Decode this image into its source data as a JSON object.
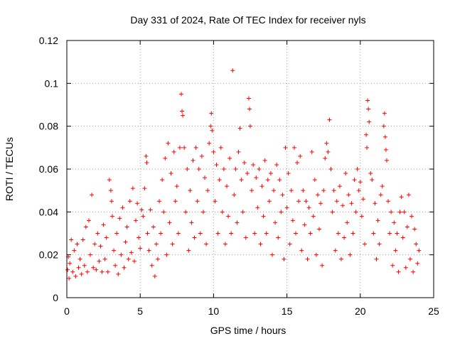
{
  "chart_data": {
    "type": "scatter",
    "title": "Day 331 of 2024, Rate Of TEC Index for receiver nyls",
    "xlabel": "GPS time / hours",
    "ylabel": "ROTI / TECUs",
    "xlim": [
      0,
      25
    ],
    "ylim": [
      0,
      0.12
    ],
    "x_ticks": [
      0,
      5,
      10,
      15,
      20,
      25
    ],
    "x_tick_labels": [
      "0",
      "5",
      "10",
      "15",
      "20",
      "25"
    ],
    "y_ticks": [
      0,
      0.02,
      0.04,
      0.06,
      0.08,
      0.1,
      0.12
    ],
    "y_tick_labels": [
      "0",
      "0.02",
      "0.04",
      "0.06",
      "0.08",
      "0.1",
      "0.12"
    ],
    "grid": true,
    "marker": "+",
    "colors": {
      "points": "#ff0000",
      "grid": "#a0a0a0",
      "axes": "#000000"
    },
    "series": [
      {
        "points": [
          [
            0.05,
            0.013
          ],
          [
            0.1,
            0.019
          ],
          [
            0.15,
            0.009
          ],
          [
            0.2,
            0.016
          ],
          [
            0.3,
            0.027
          ],
          [
            0.4,
            0.012
          ],
          [
            0.5,
            0.022
          ],
          [
            0.6,
            0.01
          ],
          [
            0.7,
            0.025
          ],
          [
            0.8,
            0.014
          ],
          [
            0.9,
            0.018
          ],
          [
            1.0,
            0.011
          ],
          [
            1.1,
            0.027
          ],
          [
            1.2,
            0.015
          ],
          [
            1.3,
            0.033
          ],
          [
            1.4,
            0.012
          ],
          [
            1.5,
            0.036
          ],
          [
            1.6,
            0.02
          ],
          [
            1.7,
            0.048
          ],
          [
            1.8,
            0.014
          ],
          [
            1.9,
            0.025
          ],
          [
            2.0,
            0.013
          ],
          [
            2.1,
            0.03
          ],
          [
            2.2,
            0.017
          ],
          [
            2.3,
            0.024
          ],
          [
            2.4,
            0.012
          ],
          [
            2.5,
            0.034
          ],
          [
            2.6,
            0.018
          ],
          [
            2.7,
            0.028
          ],
          [
            2.8,
            0.012
          ],
          [
            2.9,
            0.055
          ],
          [
            3.0,
            0.05
          ],
          [
            3.05,
            0.045
          ],
          [
            3.1,
            0.038
          ],
          [
            3.2,
            0.022
          ],
          [
            3.3,
            0.015
          ],
          [
            3.4,
            0.03
          ],
          [
            3.5,
            0.011
          ],
          [
            3.6,
            0.037
          ],
          [
            3.7,
            0.02
          ],
          [
            3.8,
            0.042
          ],
          [
            3.9,
            0.014
          ],
          [
            4.0,
            0.026
          ],
          [
            4.1,
            0.033
          ],
          [
            4.2,
            0.018
          ],
          [
            4.3,
            0.045
          ],
          [
            4.4,
            0.021
          ],
          [
            4.5,
            0.051
          ],
          [
            4.6,
            0.017
          ],
          [
            4.7,
            0.036
          ],
          [
            4.8,
            0.044
          ],
          [
            4.9,
            0.028
          ],
          [
            5.0,
            0.023
          ],
          [
            5.1,
            0.041
          ],
          [
            5.2,
            0.038
          ],
          [
            5.3,
            0.051
          ],
          [
            5.4,
            0.066
          ],
          [
            5.45,
            0.063
          ],
          [
            5.5,
            0.03
          ],
          [
            5.6,
            0.022
          ],
          [
            5.7,
            0.041
          ],
          [
            5.8,
            0.015
          ],
          [
            5.9,
            0.033
          ],
          [
            6.0,
            0.01
          ],
          [
            6.1,
            0.025
          ],
          [
            6.2,
            0.018
          ],
          [
            6.3,
            0.045
          ],
          [
            6.4,
            0.03
          ],
          [
            6.5,
            0.055
          ],
          [
            6.6,
            0.04
          ],
          [
            6.7,
            0.065
          ],
          [
            6.8,
            0.02
          ],
          [
            6.9,
            0.072
          ],
          [
            7.0,
            0.035
          ],
          [
            7.1,
            0.058
          ],
          [
            7.2,
            0.025
          ],
          [
            7.3,
            0.068
          ],
          [
            7.4,
            0.045
          ],
          [
            7.5,
            0.052
          ],
          [
            7.6,
            0.03
          ],
          [
            7.7,
            0.07
          ],
          [
            7.8,
            0.095
          ],
          [
            7.85,
            0.087
          ],
          [
            7.9,
            0.085
          ],
          [
            8.0,
            0.07
          ],
          [
            8.1,
            0.04
          ],
          [
            8.2,
            0.06
          ],
          [
            8.3,
            0.022
          ],
          [
            8.4,
            0.05
          ],
          [
            8.5,
            0.035
          ],
          [
            8.6,
            0.064
          ],
          [
            8.7,
            0.028
          ],
          [
            8.8,
            0.07
          ],
          [
            8.9,
            0.045
          ],
          [
            9.0,
            0.06
          ],
          [
            9.1,
            0.03
          ],
          [
            9.2,
            0.066
          ],
          [
            9.3,
            0.04
          ],
          [
            9.4,
            0.056
          ],
          [
            9.5,
            0.025
          ],
          [
            9.6,
            0.05
          ],
          [
            9.7,
            0.072
          ],
          [
            9.8,
            0.08
          ],
          [
            9.85,
            0.086
          ],
          [
            9.9,
            0.078
          ],
          [
            10.0,
            0.068
          ],
          [
            10.1,
            0.045
          ],
          [
            10.2,
            0.062
          ],
          [
            10.3,
            0.03
          ],
          [
            10.4,
            0.055
          ],
          [
            10.5,
            0.07
          ],
          [
            10.6,
            0.04
          ],
          [
            10.7,
            0.06
          ],
          [
            10.8,
            0.025
          ],
          [
            10.9,
            0.052
          ],
          [
            11.0,
            0.038
          ],
          [
            11.1,
            0.065
          ],
          [
            11.2,
            0.03
          ],
          [
            11.3,
            0.106
          ],
          [
            11.4,
            0.048
          ],
          [
            11.5,
            0.06
          ],
          [
            11.6,
            0.035
          ],
          [
            11.7,
            0.068
          ],
          [
            11.8,
            0.079
          ],
          [
            11.9,
            0.055
          ],
          [
            12.0,
            0.04
          ],
          [
            12.1,
            0.063
          ],
          [
            12.2,
            0.028
          ],
          [
            12.3,
            0.058
          ],
          [
            12.4,
            0.093
          ],
          [
            12.45,
            0.088
          ],
          [
            12.5,
            0.08
          ],
          [
            12.6,
            0.05
          ],
          [
            12.7,
            0.062
          ],
          [
            12.8,
            0.03
          ],
          [
            12.9,
            0.056
          ],
          [
            13.0,
            0.042
          ],
          [
            13.1,
            0.06
          ],
          [
            13.2,
            0.025
          ],
          [
            13.3,
            0.052
          ],
          [
            13.4,
            0.038
          ],
          [
            13.5,
            0.064
          ],
          [
            13.6,
            0.03
          ],
          [
            13.7,
            0.055
          ],
          [
            13.8,
            0.045
          ],
          [
            13.9,
            0.058
          ],
          [
            14.0,
            0.02
          ],
          [
            14.1,
            0.05
          ],
          [
            14.2,
            0.035
          ],
          [
            14.3,
            0.062
          ],
          [
            14.4,
            0.028
          ],
          [
            14.5,
            0.055
          ],
          [
            14.6,
            0.04
          ],
          [
            14.7,
            0.048
          ],
          [
            14.8,
            0.018
          ],
          [
            14.9,
            0.07
          ],
          [
            15.0,
            0.042
          ],
          [
            15.1,
            0.058
          ],
          [
            15.2,
            0.025
          ],
          [
            15.3,
            0.05
          ],
          [
            15.4,
            0.036
          ],
          [
            15.5,
            0.07
          ],
          [
            15.6,
            0.03
          ],
          [
            15.7,
            0.063
          ],
          [
            15.8,
            0.045
          ],
          [
            15.9,
            0.066
          ],
          [
            16.0,
            0.022
          ],
          [
            16.1,
            0.05
          ],
          [
            16.2,
            0.034
          ],
          [
            16.3,
            0.045
          ],
          [
            16.4,
            0.018
          ],
          [
            16.5,
            0.042
          ],
          [
            16.6,
            0.03
          ],
          [
            16.7,
            0.068
          ],
          [
            16.8,
            0.038
          ],
          [
            16.9,
            0.055
          ],
          [
            17.0,
            0.02
          ],
          [
            17.1,
            0.048
          ],
          [
            17.2,
            0.032
          ],
          [
            17.3,
            0.044
          ],
          [
            17.4,
            0.015
          ],
          [
            17.5,
            0.05
          ],
          [
            17.6,
            0.065
          ],
          [
            17.7,
            0.072
          ],
          [
            17.8,
            0.068
          ],
          [
            17.9,
            0.083
          ],
          [
            18.0,
            0.06
          ],
          [
            18.1,
            0.04
          ],
          [
            18.2,
            0.05
          ],
          [
            18.3,
            0.022
          ],
          [
            18.4,
            0.045
          ],
          [
            18.5,
            0.03
          ],
          [
            18.6,
            0.052
          ],
          [
            18.7,
            0.018
          ],
          [
            18.8,
            0.043
          ],
          [
            18.9,
            0.028
          ],
          [
            19.0,
            0.058
          ],
          [
            19.1,
            0.035
          ],
          [
            19.2,
            0.048
          ],
          [
            19.3,
            0.02
          ],
          [
            19.4,
            0.044
          ],
          [
            19.5,
            0.03
          ],
          [
            19.6,
            0.055
          ],
          [
            19.7,
            0.04
          ],
          [
            19.8,
            0.06
          ],
          [
            19.9,
            0.05
          ],
          [
            20.0,
            0.054
          ],
          [
            20.1,
            0.038
          ],
          [
            20.2,
            0.046
          ],
          [
            20.3,
            0.025
          ],
          [
            20.4,
            0.076
          ],
          [
            20.45,
            0.07
          ],
          [
            20.5,
            0.092
          ],
          [
            20.55,
            0.088
          ],
          [
            20.6,
            0.082
          ],
          [
            20.7,
            0.058
          ],
          [
            20.8,
            0.055
          ],
          [
            20.9,
            0.03
          ],
          [
            21.0,
            0.044
          ],
          [
            21.1,
            0.018
          ],
          [
            21.2,
            0.036
          ],
          [
            21.3,
            0.025
          ],
          [
            21.4,
            0.048
          ],
          [
            21.5,
            0.052
          ],
          [
            21.6,
            0.08
          ],
          [
            21.65,
            0.086
          ],
          [
            21.7,
            0.075
          ],
          [
            21.75,
            0.069
          ],
          [
            21.8,
            0.064
          ],
          [
            21.9,
            0.045
          ],
          [
            22.0,
            0.03
          ],
          [
            22.1,
            0.04
          ],
          [
            22.2,
            0.015
          ],
          [
            22.3,
            0.035
          ],
          [
            22.4,
            0.022
          ],
          [
            22.5,
            0.03
          ],
          [
            22.6,
            0.012
          ],
          [
            22.7,
            0.04
          ],
          [
            22.8,
            0.047
          ],
          [
            22.9,
            0.028
          ],
          [
            23.0,
            0.04
          ],
          [
            23.1,
            0.014
          ],
          [
            23.2,
            0.033
          ],
          [
            23.3,
            0.048
          ],
          [
            23.4,
            0.018
          ],
          [
            23.5,
            0.038
          ],
          [
            23.6,
            0.012
          ],
          [
            23.7,
            0.032
          ],
          [
            23.8,
            0.025
          ],
          [
            23.9,
            0.016
          ],
          [
            24.0,
            0.022
          ]
        ]
      }
    ]
  }
}
